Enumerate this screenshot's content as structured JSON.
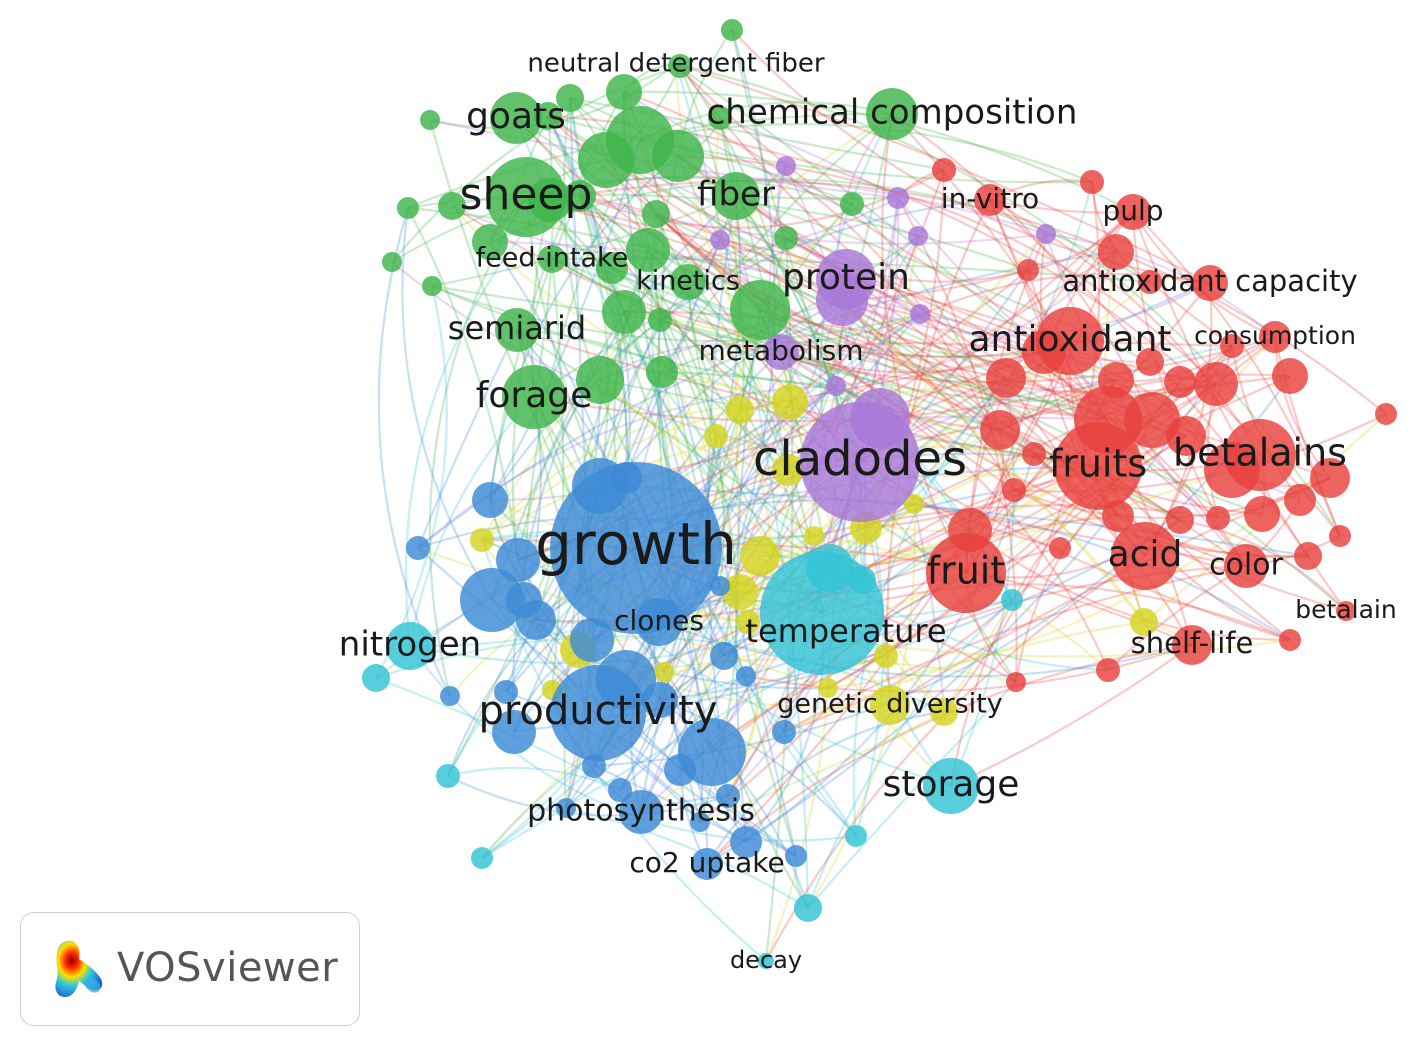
{
  "app": {
    "name": "VOSviewer"
  },
  "colors": {
    "red": "#e8413d",
    "green": "#3fb54a",
    "blue": "#3d8ad6",
    "purple": "#a878d8",
    "cyan": "#33c3d6",
    "yellow": "#d4d420"
  },
  "clusters": [
    {
      "color": "green",
      "terms": [
        "neutral detergent fiber",
        "goats",
        "chemical composition",
        "sheep",
        "fiber",
        "feed-intake",
        "kinetics",
        "semiarid",
        "forage"
      ]
    },
    {
      "color": "red",
      "terms": [
        "in-vitro",
        "pulp",
        "antioxidant capacity",
        "antioxidant",
        "consumption",
        "fruits",
        "betalains",
        "fruit",
        "acid",
        "color",
        "betalain",
        "shelf-life"
      ]
    },
    {
      "color": "purple",
      "terms": [
        "protein",
        "metabolism",
        "cladodes"
      ]
    },
    {
      "color": "blue",
      "terms": [
        "growth",
        "clones",
        "productivity",
        "photosynthesis",
        "co2 uptake"
      ]
    },
    {
      "color": "cyan",
      "terms": [
        "nitrogen",
        "temperature",
        "storage",
        "decay"
      ]
    },
    {
      "color": "yellow",
      "terms": [
        "genetic diversity"
      ]
    }
  ]
}
